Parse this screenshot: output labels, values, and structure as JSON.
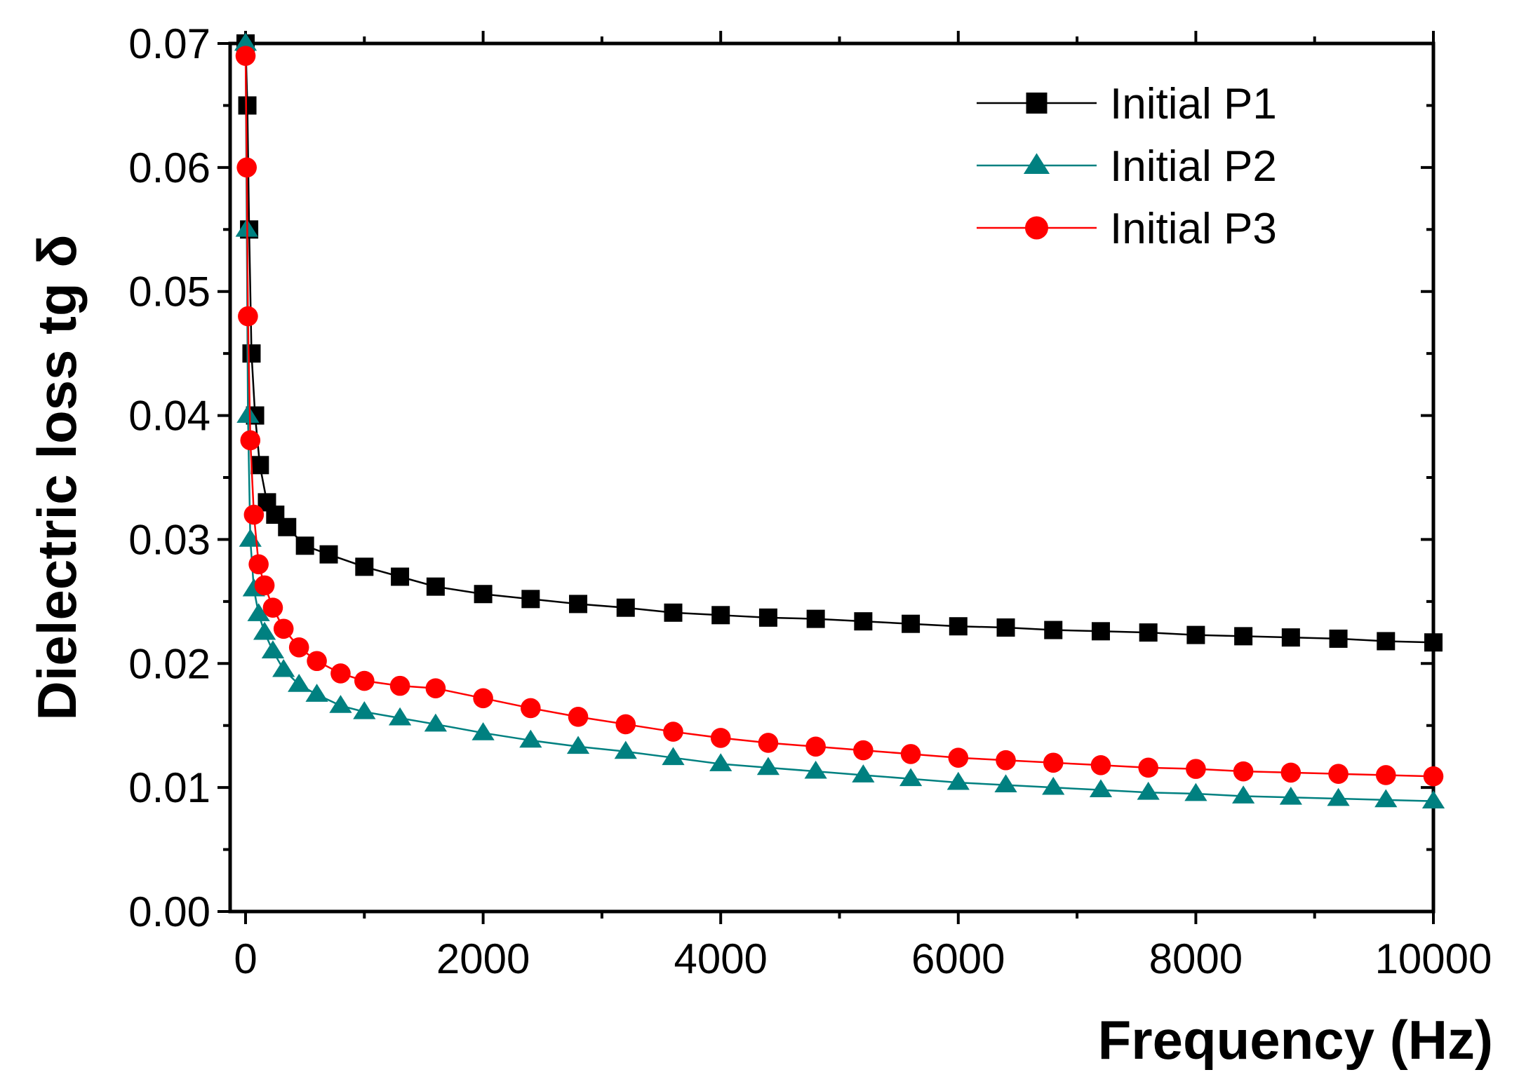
{
  "chart_data": {
    "type": "line",
    "title": "",
    "xlabel": "Frequency (Hz)",
    "ylabel": "Dielectric loss tg δ",
    "xlim": [
      -130,
      10000
    ],
    "ylim": [
      0,
      0.07
    ],
    "xticks": [
      0,
      2000,
      4000,
      6000,
      8000,
      10000
    ],
    "xtick_labels": [
      "0",
      "2000",
      "4000",
      "6000",
      "8000",
      "10000"
    ],
    "yticks": [
      0,
      0.01,
      0.02,
      0.03,
      0.04,
      0.05,
      0.06,
      0.07
    ],
    "ytick_labels": [
      "0.00",
      "0.01",
      "0.02",
      "0.03",
      "0.04",
      "0.05",
      "0.06",
      "0.07"
    ],
    "grid": false,
    "legend_position": "top-right",
    "series": [
      {
        "name": "Initial P1",
        "color": "#000000",
        "marker": "square",
        "x": [
          0,
          15,
          30,
          50,
          80,
          120,
          180,
          250,
          350,
          500,
          700,
          1000,
          1300,
          1600,
          2000,
          2400,
          2800,
          3200,
          3600,
          4000,
          4400,
          4800,
          5200,
          5600,
          6000,
          6400,
          6800,
          7200,
          7600,
          8000,
          8400,
          8800,
          9200,
          9600,
          10000
        ],
        "values": [
          0.07,
          0.065,
          0.055,
          0.045,
          0.04,
          0.036,
          0.033,
          0.032,
          0.031,
          0.0295,
          0.0288,
          0.0278,
          0.027,
          0.0262,
          0.0256,
          0.0252,
          0.0248,
          0.0245,
          0.0241,
          0.0239,
          0.0237,
          0.0236,
          0.0234,
          0.0232,
          0.023,
          0.0229,
          0.0227,
          0.0226,
          0.0225,
          0.0223,
          0.0222,
          0.0221,
          0.022,
          0.0218,
          0.0217
        ]
      },
      {
        "name": "Initial P2",
        "color": "#008080",
        "marker": "triangle",
        "x": [
          0,
          10,
          20,
          40,
          70,
          110,
          160,
          230,
          320,
          450,
          600,
          800,
          1000,
          1300,
          1600,
          2000,
          2400,
          2800,
          3200,
          3600,
          4000,
          4400,
          4800,
          5200,
          5600,
          6000,
          6400,
          6800,
          7200,
          7600,
          8000,
          8400,
          8800,
          9200,
          9600,
          10000
        ],
        "values": [
          0.07,
          0.055,
          0.04,
          0.03,
          0.026,
          0.024,
          0.0225,
          0.021,
          0.0195,
          0.0183,
          0.0175,
          0.0166,
          0.0161,
          0.0156,
          0.0151,
          0.0144,
          0.0138,
          0.0133,
          0.0129,
          0.0124,
          0.0119,
          0.0116,
          0.0113,
          0.011,
          0.0107,
          0.0104,
          0.0102,
          0.01,
          0.0098,
          0.0096,
          0.0095,
          0.0093,
          0.0092,
          0.0091,
          0.009,
          0.0089
        ]
      },
      {
        "name": "Initial P3",
        "color": "#ff0000",
        "marker": "circle",
        "x": [
          0,
          10,
          20,
          40,
          70,
          110,
          160,
          230,
          320,
          450,
          600,
          800,
          1000,
          1300,
          1600,
          2000,
          2400,
          2800,
          3200,
          3600,
          4000,
          4400,
          4800,
          5200,
          5600,
          6000,
          6400,
          6800,
          7200,
          7600,
          8000,
          8400,
          8800,
          9200,
          9600,
          10000
        ],
        "values": [
          0.069,
          0.06,
          0.048,
          0.038,
          0.032,
          0.028,
          0.0263,
          0.0245,
          0.0228,
          0.0213,
          0.0202,
          0.0192,
          0.0186,
          0.0182,
          0.018,
          0.0172,
          0.0164,
          0.0157,
          0.0151,
          0.0145,
          0.014,
          0.0136,
          0.0133,
          0.013,
          0.0127,
          0.0124,
          0.0122,
          0.012,
          0.0118,
          0.0116,
          0.0115,
          0.0113,
          0.0112,
          0.0111,
          0.011,
          0.0109
        ]
      }
    ]
  }
}
